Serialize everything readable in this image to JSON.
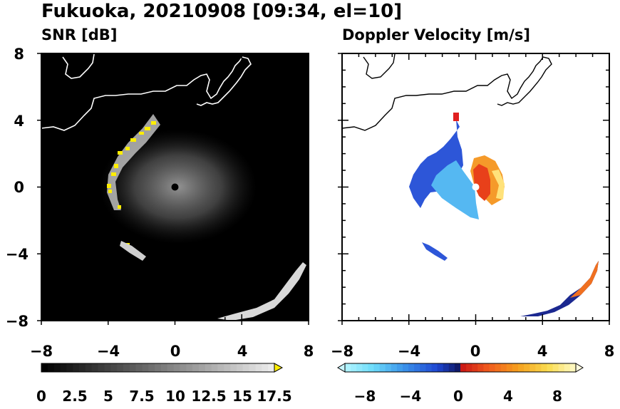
{
  "figure_title": "Fukuoka, 20210908 [09:34, el=10]",
  "chart_data": [
    {
      "type": "heatmap",
      "title": "SNR [dB]",
      "xlabel": "",
      "ylabel": "",
      "xlim": [
        -8,
        8
      ],
      "ylim": [
        -8,
        8
      ],
      "x_ticks": [
        "−8",
        "−4",
        "0",
        "4",
        "8"
      ],
      "y_ticks": [
        "8",
        "4",
        "0",
        "−4",
        "−8"
      ],
      "colorbar": {
        "range": [
          0,
          18.5
        ],
        "extend": "max",
        "labels": [
          "0",
          "2.5",
          "5",
          "7.5",
          "10",
          "12.5",
          "15",
          "17.5"
        ],
        "colormap": "gray_to_yellow"
      }
    },
    {
      "type": "heatmap",
      "title": "Doppler Velocity [m/s]",
      "xlabel": "",
      "ylabel": "",
      "xlim": [
        -8,
        8
      ],
      "ylim": [
        -8,
        8
      ],
      "x_ticks": [
        "−8",
        "−4",
        "0",
        "4",
        "8"
      ],
      "y_ticks": [
        "8",
        "4",
        "0",
        "−4",
        "−8"
      ],
      "colorbar": {
        "range": [
          -10,
          10
        ],
        "extend": "both",
        "labels": [
          "−8",
          "−4",
          "0",
          "4",
          "8"
        ],
        "colormap": "cyan_blue_red_yellow"
      }
    }
  ],
  "colors": {
    "background_left": "#000000",
    "radar_echo": "#8a8a8a",
    "high_snr": "#ffee00",
    "coastline_left": "#ffffff",
    "coastline_right": "#000000"
  }
}
